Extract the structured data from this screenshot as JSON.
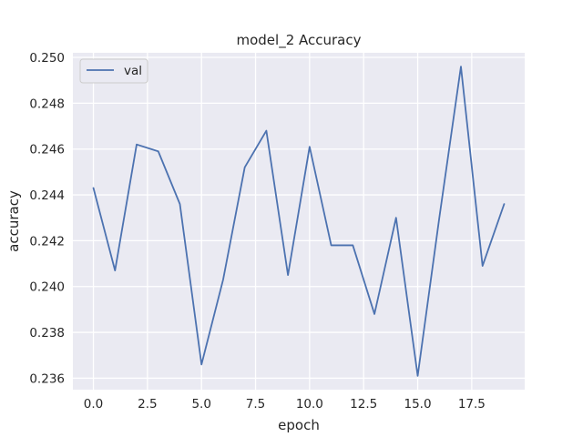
{
  "chart_data": {
    "type": "line",
    "title": "model_2 Accuracy",
    "xlabel": "epoch",
    "ylabel": "accuracy",
    "x": [
      0,
      1,
      2,
      3,
      4,
      5,
      6,
      7,
      8,
      9,
      10,
      11,
      12,
      13,
      14,
      15,
      16,
      17,
      18,
      19
    ],
    "series": [
      {
        "name": "val",
        "color": "#4c72b0",
        "values": [
          0.2443,
          0.2407,
          0.2462,
          0.2459,
          0.2436,
          0.2366,
          0.2403,
          0.2452,
          0.2468,
          0.2405,
          0.2461,
          0.2418,
          0.2418,
          0.2388,
          0.243,
          0.2361,
          0.243,
          0.2496,
          0.2409,
          0.2436
        ]
      }
    ],
    "xlim": [
      -0.95,
      19.95
    ],
    "ylim": [
      0.2355,
      0.2502
    ],
    "xticks": [
      0.0,
      2.5,
      5.0,
      7.5,
      10.0,
      12.5,
      15.0,
      17.5
    ],
    "xtick_labels": [
      "0.0",
      "2.5",
      "5.0",
      "7.5",
      "10.0",
      "12.5",
      "15.0",
      "17.5"
    ],
    "yticks": [
      0.236,
      0.238,
      0.24,
      0.242,
      0.244,
      0.246,
      0.248,
      0.25
    ],
    "ytick_labels": [
      "0.236",
      "0.238",
      "0.240",
      "0.242",
      "0.244",
      "0.246",
      "0.248",
      "0.250"
    ],
    "grid": true,
    "background": "#eaeaf2",
    "grid_color": "#ffffff",
    "legend": {
      "position": "upper-left"
    }
  }
}
